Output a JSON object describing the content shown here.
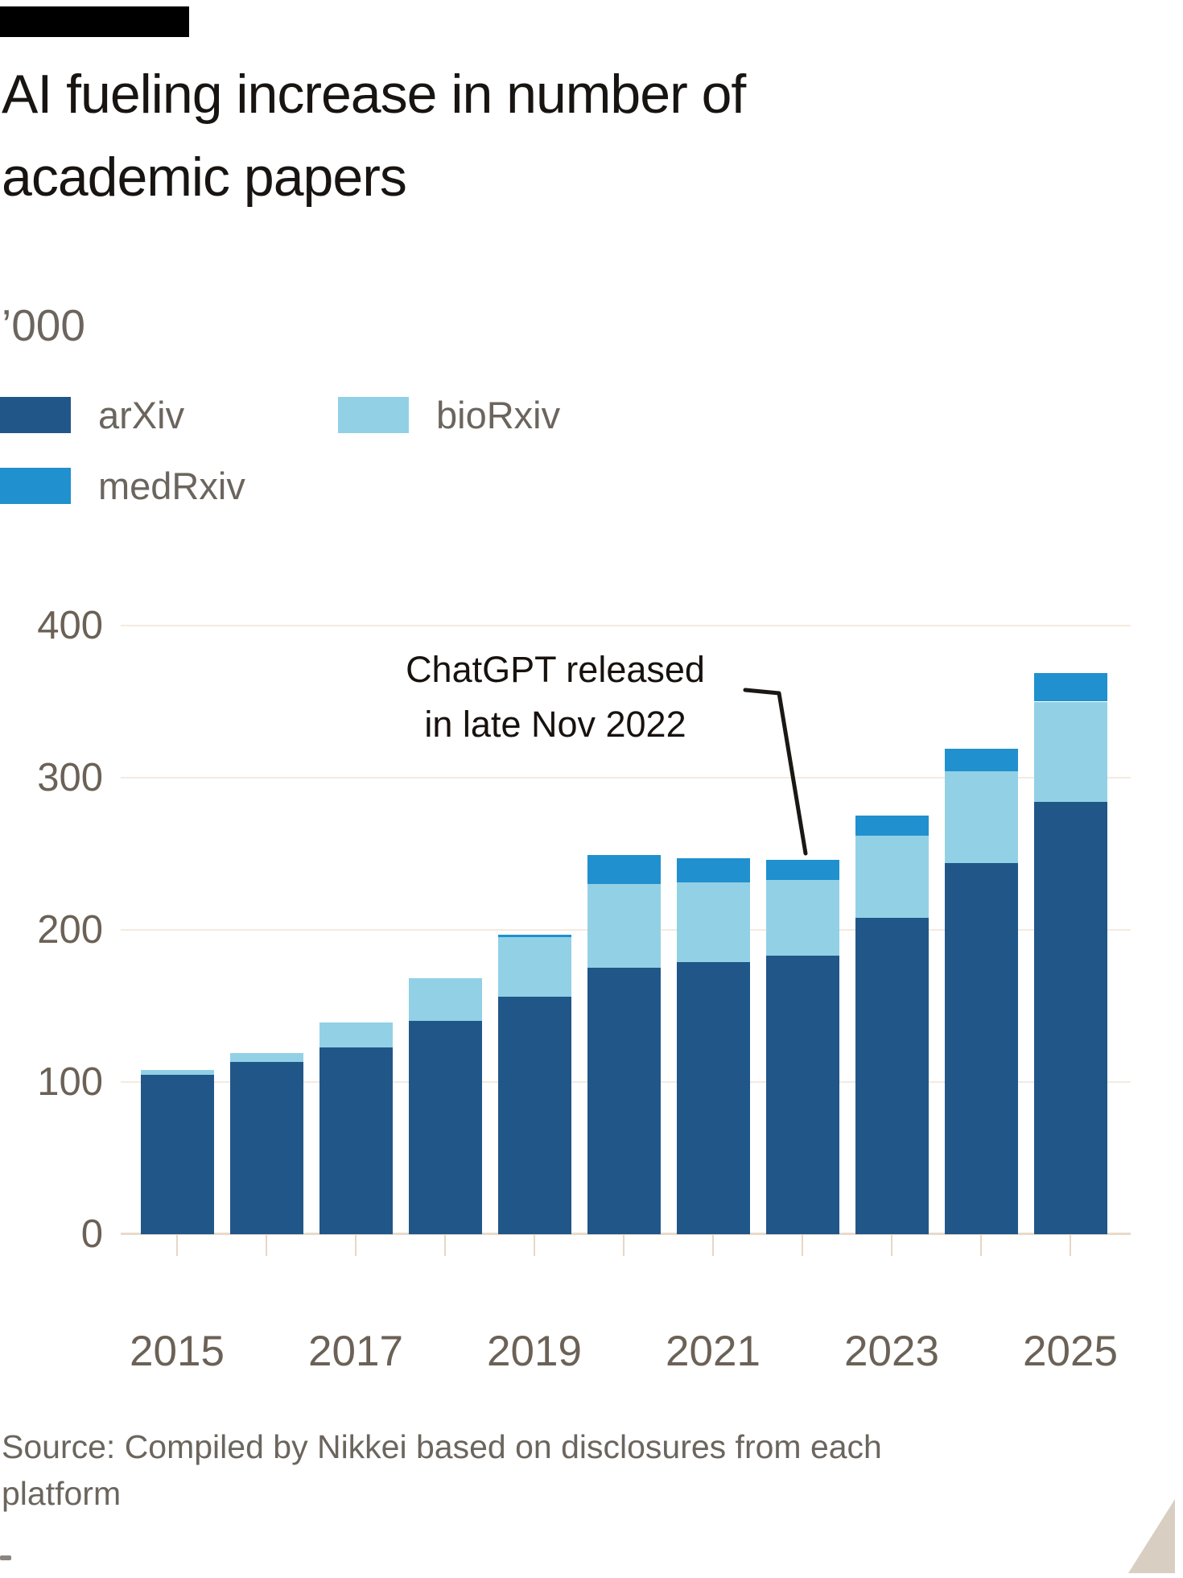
{
  "header": {
    "title_lines": [
      "AI fueling increase in number of",
      "academic papers"
    ],
    "unit_label": "’000"
  },
  "legend": [
    {
      "label": "arXiv",
      "color": "#215689"
    },
    {
      "label": "bioRxiv",
      "color": "#92d1e5"
    },
    {
      "label": "medRxiv",
      "color": "#2090ce"
    }
  ],
  "annotation": {
    "lines": [
      "ChatGPT released",
      "in late Nov 2022"
    ],
    "target_year": 2022
  },
  "source_lines": [
    "Source: Compiled by Nikkei based on disclosures from each",
    "platform"
  ],
  "chart_data": {
    "type": "bar",
    "stacked": true,
    "title": "AI fueling increase in number of academic papers",
    "ylabel": "’000",
    "ylim": [
      0,
      400
    ],
    "yticks": [
      0,
      100,
      200,
      300,
      400
    ],
    "grid": true,
    "legend_position": "top-left",
    "categories": [
      2015,
      2016,
      2017,
      2018,
      2019,
      2020,
      2021,
      2022,
      2023,
      2024,
      2025
    ],
    "xtick_labels": [
      "2015",
      "2017",
      "2019",
      "2021",
      "2023",
      "2025"
    ],
    "series": [
      {
        "name": "arXiv",
        "color": "#215689",
        "values": [
          105,
          113,
          123,
          140,
          156,
          175,
          179,
          183,
          208,
          244,
          284
        ]
      },
      {
        "name": "bioRxiv",
        "color": "#92d1e5",
        "values": [
          3,
          6,
          16,
          28,
          39,
          55,
          52,
          50,
          54,
          60,
          66
        ]
      },
      {
        "name": "medRxiv",
        "color": "#2090ce",
        "values": [
          0,
          0,
          0,
          0,
          2,
          19,
          16,
          13,
          13,
          15,
          19
        ]
      }
    ],
    "totals": [
      108,
      119,
      139,
      168,
      197,
      249,
      247,
      246,
      275,
      319,
      369
    ]
  }
}
